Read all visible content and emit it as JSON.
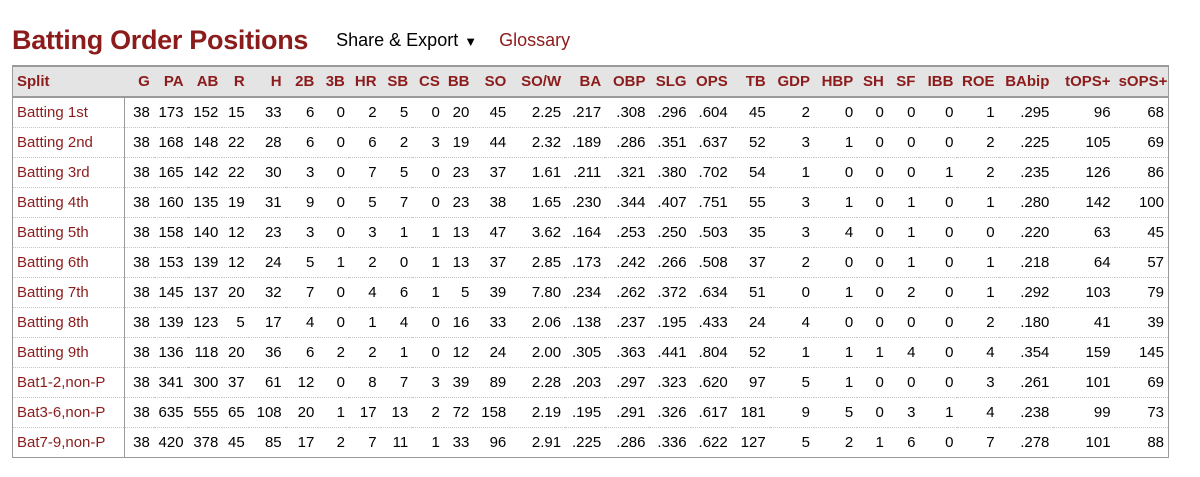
{
  "header": {
    "title": "Batting Order Positions",
    "share_label": "Share & Export",
    "share_caret": "▼",
    "glossary_label": "Glossary"
  },
  "colors": {
    "accent": "#8c1c1c",
    "header_bg": "#e4e4e4"
  },
  "table": {
    "columns": [
      "Split",
      "G",
      "PA",
      "AB",
      "R",
      "H",
      "2B",
      "3B",
      "HR",
      "SB",
      "CS",
      "BB",
      "SO",
      "SO/W",
      "BA",
      "OBP",
      "SLG",
      "OPS",
      "TB",
      "GDP",
      "HBP",
      "SH",
      "SF",
      "IBB",
      "ROE",
      "BAbip",
      "tOPS+",
      "sOPS+"
    ],
    "rows": [
      [
        "Batting 1st",
        "38",
        "173",
        "152",
        "15",
        "33",
        "6",
        "0",
        "2",
        "5",
        "0",
        "20",
        "45",
        "2.25",
        ".217",
        ".308",
        ".296",
        ".604",
        "45",
        "2",
        "0",
        "0",
        "0",
        "0",
        "1",
        ".295",
        "96",
        "68"
      ],
      [
        "Batting 2nd",
        "38",
        "168",
        "148",
        "22",
        "28",
        "6",
        "0",
        "6",
        "2",
        "3",
        "19",
        "44",
        "2.32",
        ".189",
        ".286",
        ".351",
        ".637",
        "52",
        "3",
        "1",
        "0",
        "0",
        "0",
        "2",
        ".225",
        "105",
        "69"
      ],
      [
        "Batting 3rd",
        "38",
        "165",
        "142",
        "22",
        "30",
        "3",
        "0",
        "7",
        "5",
        "0",
        "23",
        "37",
        "1.61",
        ".211",
        ".321",
        ".380",
        ".702",
        "54",
        "1",
        "0",
        "0",
        "0",
        "1",
        "2",
        ".235",
        "126",
        "86"
      ],
      [
        "Batting 4th",
        "38",
        "160",
        "135",
        "19",
        "31",
        "9",
        "0",
        "5",
        "7",
        "0",
        "23",
        "38",
        "1.65",
        ".230",
        ".344",
        ".407",
        ".751",
        "55",
        "3",
        "1",
        "0",
        "1",
        "0",
        "1",
        ".280",
        "142",
        "100"
      ],
      [
        "Batting 5th",
        "38",
        "158",
        "140",
        "12",
        "23",
        "3",
        "0",
        "3",
        "1",
        "1",
        "13",
        "47",
        "3.62",
        ".164",
        ".253",
        ".250",
        ".503",
        "35",
        "3",
        "4",
        "0",
        "1",
        "0",
        "0",
        ".220",
        "63",
        "45"
      ],
      [
        "Batting 6th",
        "38",
        "153",
        "139",
        "12",
        "24",
        "5",
        "1",
        "2",
        "0",
        "1",
        "13",
        "37",
        "2.85",
        ".173",
        ".242",
        ".266",
        ".508",
        "37",
        "2",
        "0",
        "0",
        "1",
        "0",
        "1",
        ".218",
        "64",
        "57"
      ],
      [
        "Batting 7th",
        "38",
        "145",
        "137",
        "20",
        "32",
        "7",
        "0",
        "4",
        "6",
        "1",
        "5",
        "39",
        "7.80",
        ".234",
        ".262",
        ".372",
        ".634",
        "51",
        "0",
        "1",
        "0",
        "2",
        "0",
        "1",
        ".292",
        "103",
        "79"
      ],
      [
        "Batting 8th",
        "38",
        "139",
        "123",
        "5",
        "17",
        "4",
        "0",
        "1",
        "4",
        "0",
        "16",
        "33",
        "2.06",
        ".138",
        ".237",
        ".195",
        ".433",
        "24",
        "4",
        "0",
        "0",
        "0",
        "0",
        "2",
        ".180",
        "41",
        "39"
      ],
      [
        "Batting 9th",
        "38",
        "136",
        "118",
        "20",
        "36",
        "6",
        "2",
        "2",
        "1",
        "0",
        "12",
        "24",
        "2.00",
        ".305",
        ".363",
        ".441",
        ".804",
        "52",
        "1",
        "1",
        "1",
        "4",
        "0",
        "4",
        ".354",
        "159",
        "145"
      ],
      [
        "Bat1-2,non-P",
        "38",
        "341",
        "300",
        "37",
        "61",
        "12",
        "0",
        "8",
        "7",
        "3",
        "39",
        "89",
        "2.28",
        ".203",
        ".297",
        ".323",
        ".620",
        "97",
        "5",
        "1",
        "0",
        "0",
        "0",
        "3",
        ".261",
        "101",
        "69"
      ],
      [
        "Bat3-6,non-P",
        "38",
        "635",
        "555",
        "65",
        "108",
        "20",
        "1",
        "17",
        "13",
        "2",
        "72",
        "158",
        "2.19",
        ".195",
        ".291",
        ".326",
        ".617",
        "181",
        "9",
        "5",
        "0",
        "3",
        "1",
        "4",
        ".238",
        "99",
        "73"
      ],
      [
        "Bat7-9,non-P",
        "38",
        "420",
        "378",
        "45",
        "85",
        "17",
        "2",
        "7",
        "11",
        "1",
        "33",
        "96",
        "2.91",
        ".225",
        ".286",
        ".336",
        ".622",
        "127",
        "5",
        "2",
        "1",
        "6",
        "0",
        "7",
        ".278",
        "101",
        "88"
      ]
    ]
  }
}
